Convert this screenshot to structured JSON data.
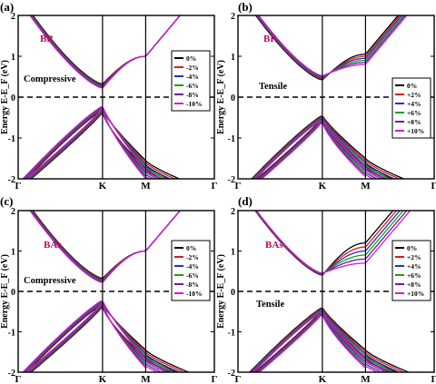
{
  "chart_data": [
    {
      "type": "line",
      "panel_label": "(a)",
      "material": "BP",
      "strain_label": "Compressive",
      "ylabel": "Energy E-E_F (eV)",
      "ylim": [
        -2,
        2
      ],
      "y_ticks": [
        "2",
        "1",
        "0",
        "-1",
        "-2"
      ],
      "x_ticks": [
        "Γ",
        "K",
        "M",
        "Γ"
      ],
      "fermi_level": 0,
      "legend": [
        "0%",
        "-2%",
        "-4%",
        "-6%",
        "-8%",
        "-10%"
      ],
      "series_colors": [
        "#000000",
        "#e0181d",
        "#2a2cc8",
        "#15a215",
        "#6a1fa0",
        "#d21ad2"
      ],
      "gap_min": [
        0.32,
        0.3,
        0.28,
        0.26,
        0.24,
        0.22
      ],
      "vb_max": [
        -0.32,
        -0.3,
        -0.28,
        -0.26,
        -0.24,
        -0.22
      ],
      "cb_at_M": [
        1.0,
        1.0,
        1.0,
        1.0,
        1.0,
        1.0
      ],
      "vb_at_M": [
        -1.55,
        -1.6,
        -1.65,
        -1.7,
        -1.75,
        -1.8
      ]
    },
    {
      "type": "line",
      "panel_label": "(b)",
      "material": "BP",
      "strain_label": "Tensile",
      "ylabel": "Energy E-E_F (eV)",
      "ylim": [
        -2,
        2
      ],
      "y_ticks": [
        "2",
        "1",
        "0",
        "-1",
        "-2"
      ],
      "x_ticks": [
        "Γ",
        "K",
        "M",
        "Γ"
      ],
      "fermi_level": 0,
      "legend": [
        "0%",
        "+2%",
        "+4%",
        "+6%",
        "+8%",
        "+10%"
      ],
      "series_colors": [
        "#000000",
        "#e0181d",
        "#2a2cc8",
        "#15a215",
        "#6a1fa0",
        "#d21ad2"
      ],
      "gap_min": [
        0.42,
        0.44,
        0.46,
        0.48,
        0.5,
        0.52
      ],
      "vb_max": [
        -0.45,
        -0.47,
        -0.49,
        -0.51,
        -0.53,
        -0.55
      ],
      "cb_at_M": [
        1.05,
        1.0,
        0.95,
        0.9,
        0.85,
        0.8
      ],
      "vb_at_M": [
        -1.5,
        -1.55,
        -1.6,
        -1.65,
        -1.7,
        -1.75
      ]
    },
    {
      "type": "line",
      "panel_label": "(c)",
      "material": "BAs",
      "strain_label": "Compressive",
      "ylabel": "Energy E-E_F (eV)",
      "ylim": [
        -2,
        2
      ],
      "y_ticks": [
        "2",
        "1",
        "0",
        "-1",
        "-2"
      ],
      "x_ticks": [
        "Γ",
        "K",
        "M",
        "Γ"
      ],
      "fermi_level": 0,
      "legend": [
        "0%",
        "-2%",
        "-4%",
        "-6%",
        "-8%",
        "-10%"
      ],
      "series_colors": [
        "#000000",
        "#e0181d",
        "#2a2cc8",
        "#15a215",
        "#6a1fa0",
        "#d21ad2"
      ],
      "gap_min": [
        0.32,
        0.3,
        0.28,
        0.26,
        0.24,
        0.22
      ],
      "vb_max": [
        -0.32,
        -0.3,
        -0.28,
        -0.26,
        -0.24,
        -0.22
      ],
      "cb_at_M": [
        1.0,
        1.0,
        1.0,
        1.0,
        1.0,
        1.0
      ],
      "vb_at_M": [
        -1.45,
        -1.5,
        -1.55,
        -1.6,
        -1.65,
        -1.7
      ]
    },
    {
      "type": "line",
      "panel_label": "(d)",
      "material": "BAs",
      "strain_label": "Tensile",
      "ylabel": "Energy E-E_F (eV)",
      "ylim": [
        -2,
        2
      ],
      "y_ticks": [
        "2",
        "1",
        "0",
        "-1",
        "-2"
      ],
      "x_ticks": [
        "Γ",
        "K",
        "M",
        "Γ"
      ],
      "fermi_level": 0,
      "legend": [
        "0%",
        "+2%",
        "+4%",
        "+6%",
        "+8%",
        "+10%"
      ],
      "series_colors": [
        "#000000",
        "#e0181d",
        "#2a2cc8",
        "#15a215",
        "#6a1fa0",
        "#d21ad2"
      ],
      "gap_min": [
        0.4,
        0.41,
        0.42,
        0.43,
        0.44,
        0.45
      ],
      "vb_max": [
        -0.4,
        -0.42,
        -0.44,
        -0.46,
        -0.48,
        -0.5
      ],
      "cb_at_M": [
        1.2,
        1.1,
        1.0,
        0.9,
        0.8,
        0.7
      ],
      "vb_at_M": [
        -1.45,
        -1.5,
        -1.55,
        -1.6,
        -1.65,
        -1.7
      ]
    }
  ]
}
